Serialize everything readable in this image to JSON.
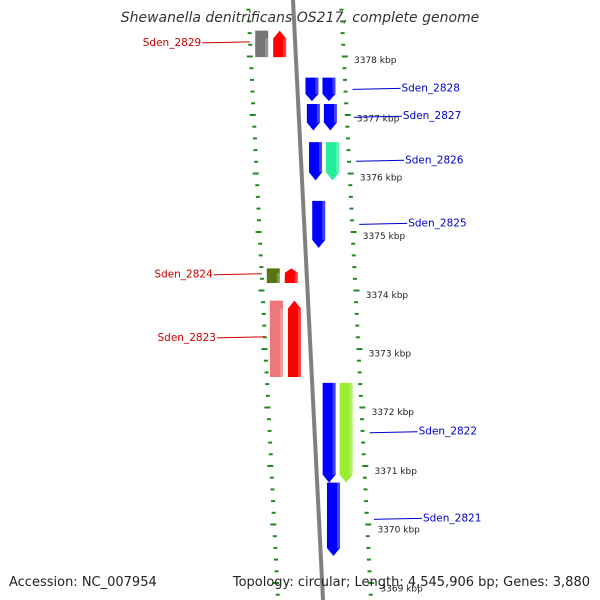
{
  "title": "Shewanella denitrificans OS217, complete genome",
  "footer": {
    "accession_label": "Accession: NC_007954",
    "topology_label": "Topology",
    "topology_value": "circular",
    "length_label": "Length",
    "length_value": "4,545,906 bp",
    "genes_label": "Genes",
    "genes_value": "3,880"
  },
  "colors": {
    "forward_label": "#0000cc",
    "reverse_label": "#cc0000",
    "backbone": "#808080",
    "tick": "#228822"
  },
  "ticks": [
    "3378 kbp",
    "3377 kbp",
    "3376 kbp",
    "3375 kbp",
    "3374 kbp",
    "3373 kbp",
    "3372 kbp",
    "3371 kbp",
    "3370 kbp",
    "3369 kbp"
  ],
  "genes": [
    {
      "name": "Sden_2829",
      "strand": "reverse",
      "color": "#ff0000",
      "start_kbp": 3378.05,
      "end_kbp": 3378.5,
      "tracks": [
        {
          "color": "#777777"
        },
        {
          "color": "#ff0000"
        }
      ]
    },
    {
      "name": "Sden_2828",
      "strand": "forward",
      "color": "#0000ff",
      "start_kbp": 3377.3,
      "end_kbp": 3377.7,
      "tracks": [
        {
          "color": "#0000ff"
        },
        {
          "color": "#0000ff"
        }
      ]
    },
    {
      "name": "Sden_2827",
      "strand": "forward",
      "color": "#0000ff",
      "start_kbp": 3376.8,
      "end_kbp": 3377.25,
      "tracks": [
        {
          "color": "#0000ff"
        },
        {
          "color": "#0000ff"
        }
      ]
    },
    {
      "name": "Sden_2826",
      "strand": "forward",
      "color": "#0000ff",
      "start_kbp": 3375.95,
      "end_kbp": 3376.6,
      "tracks": [
        {
          "color": "#0000ff"
        },
        {
          "color": "#22ee99"
        }
      ]
    },
    {
      "name": "Sden_2825",
      "strand": "forward",
      "color": "#0000ff",
      "start_kbp": 3374.8,
      "end_kbp": 3375.6,
      "tracks": [
        {
          "color": "#0000ff"
        }
      ]
    },
    {
      "name": "Sden_2824",
      "strand": "reverse",
      "color": "#ff0000",
      "start_kbp": 3374.2,
      "end_kbp": 3374.45,
      "tracks": [
        {
          "color": "#557711"
        },
        {
          "color": "#ff0000"
        }
      ]
    },
    {
      "name": "Sden_2823",
      "strand": "reverse",
      "color": "#ff0000",
      "start_kbp": 3372.6,
      "end_kbp": 3373.9,
      "tracks": [
        {
          "color": "#ee7777"
        },
        {
          "color": "#ff0000"
        }
      ]
    },
    {
      "name": "Sden_2822",
      "strand": "forward",
      "color": "#0000ff",
      "start_kbp": 3370.8,
      "end_kbp": 3372.5,
      "tracks": [
        {
          "color": "#0000ff"
        },
        {
          "color": "#99ee33"
        }
      ]
    },
    {
      "name": "Sden_2821",
      "strand": "forward",
      "color": "#0000ff",
      "start_kbp": 3369.55,
      "end_kbp": 3370.8,
      "tracks": [
        {
          "color": "#0000ff"
        }
      ]
    }
  ]
}
